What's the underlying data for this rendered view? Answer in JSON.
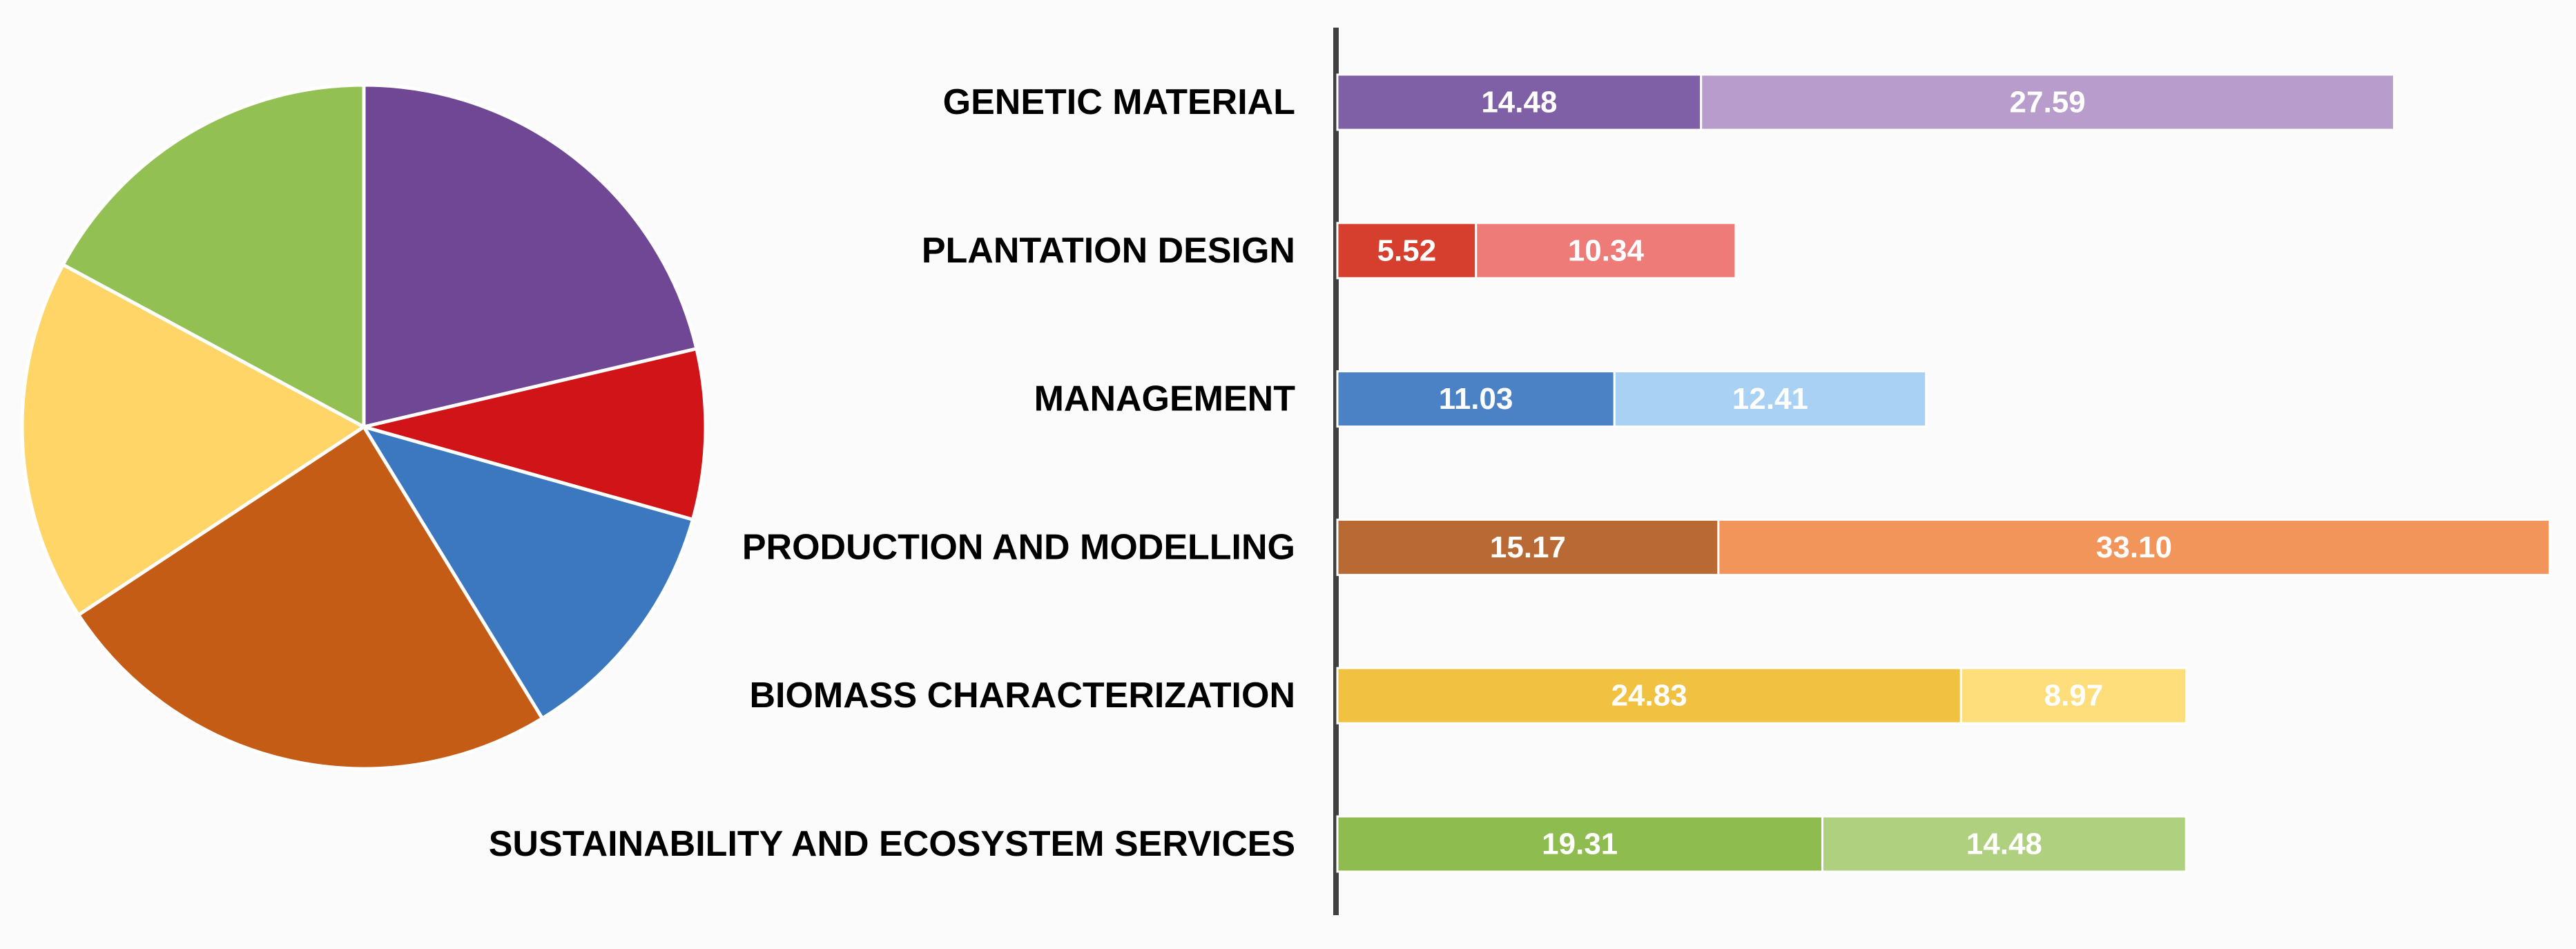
{
  "chart_data": [
    {
      "type": "pie",
      "title": "",
      "slices": [
        {
          "name": "GENETIC MATERIAL",
          "value": 42.07,
          "color": "#6f4795"
        },
        {
          "name": "PLANTATION DESIGN",
          "value": 15.86,
          "color": "#d01417"
        },
        {
          "name": "MANAGEMENT",
          "value": 23.44,
          "color": "#3b78bf"
        },
        {
          "name": "PRODUCTION AND MODELLING",
          "value": 48.27,
          "color": "#c55c16"
        },
        {
          "name": "BIOMASS CHARACTERIZATION",
          "value": 33.8,
          "color": "#fed566"
        },
        {
          "name": "SUSTAINABILITY AND ECOSYSTEM SERVICES",
          "value": 33.79,
          "color": "#92c052"
        }
      ]
    },
    {
      "type": "bar",
      "orientation": "horizontal",
      "stacked": true,
      "title": "",
      "xlim": [
        0,
        48.27
      ],
      "categories": [
        "GENETIC MATERIAL",
        "PLANTATION DESIGN",
        "MANAGEMENT",
        "PRODUCTION AND MODELLING",
        "BIOMASS CHARACTERIZATION",
        "SUSTAINABILITY AND ECOSYSTEM SERVICES"
      ],
      "series": [
        {
          "name": "segment-1",
          "values": [
            14.48,
            5.52,
            11.03,
            15.17,
            24.83,
            19.31
          ],
          "labels": [
            "14.48",
            "5.52",
            "11.03",
            "15.17",
            "24.83",
            "19.31"
          ],
          "colors": [
            "#7f5fa6",
            "#d63e2e",
            "#4a82c5",
            "#b96934",
            "#f1c142",
            "#8fbc4e"
          ]
        },
        {
          "name": "segment-2",
          "values": [
            27.59,
            10.34,
            12.41,
            33.1,
            8.97,
            14.48
          ],
          "labels": [
            "27.59",
            "10.34",
            "12.41",
            "33.10",
            "8.97",
            "14.48"
          ],
          "colors": [
            "#b89ccc",
            "#ee7b77",
            "#a8d1f4",
            "#f2955a",
            "#fedd7b",
            "#afd17f"
          ]
        }
      ]
    }
  ]
}
